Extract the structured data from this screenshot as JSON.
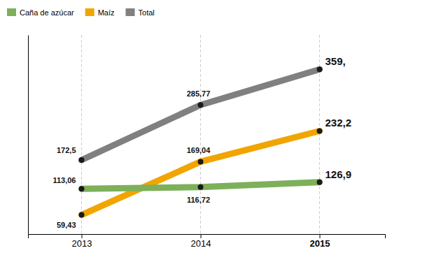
{
  "chart_data": {
    "type": "line",
    "x": [
      2013,
      2014,
      2015
    ],
    "xlim": [
      2012.55,
      2015.55
    ],
    "xticks": [
      2013,
      2014,
      2015
    ],
    "ylim": [
      20,
      430
    ],
    "tick_labels": "x",
    "grid": "x",
    "legend": "top",
    "data_labels": true,
    "marker": "circle",
    "series": [
      {
        "name": "Caña de azúcar",
        "color": "#7db05a",
        "values": [
          113.06,
          116.72,
          126.9
        ],
        "value_labels": [
          "113,06",
          "116,72",
          "126,9"
        ]
      },
      {
        "name": "Maíz",
        "color": "#f0a500",
        "values": [
          59.43,
          169.04,
          232.2
        ],
        "value_labels": [
          "59,43",
          "169,04",
          "232,2"
        ]
      },
      {
        "name": "Total",
        "color": "#808080",
        "values": [
          172.5,
          285.77,
          359.2
        ],
        "value_labels": [
          "172,5",
          "285,77",
          "359,"
        ]
      }
    ]
  }
}
